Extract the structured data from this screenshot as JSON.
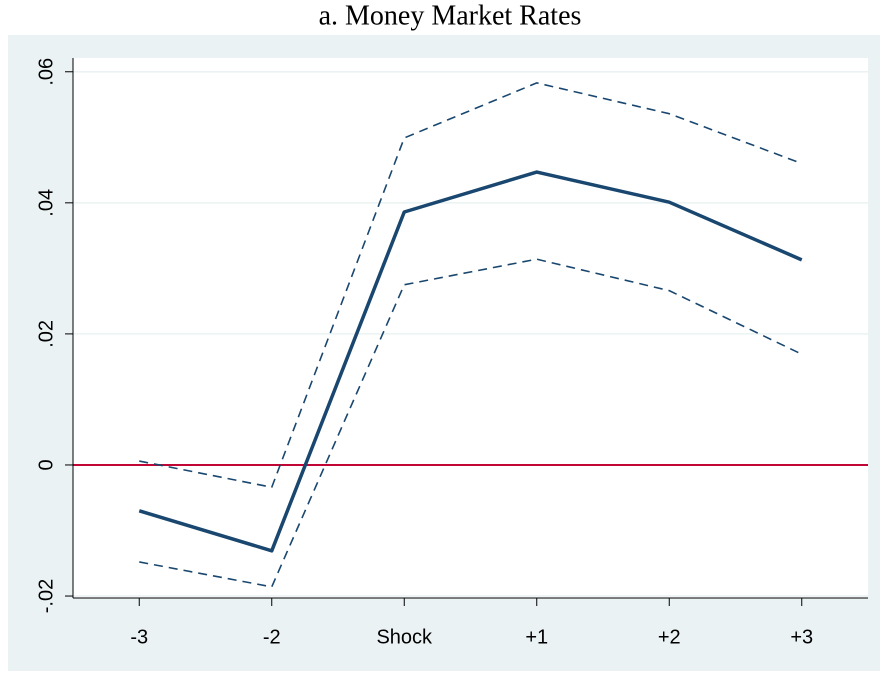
{
  "chart_data": {
    "type": "line",
    "title": "a. Money Market Rates",
    "categories": [
      "-3",
      "-2",
      "Shock",
      "+1",
      "+2",
      "+3"
    ],
    "series": [
      {
        "color": "#1a476f",
        "style": "dashed",
        "values": [
          0.0006,
          -0.0034,
          0.0499,
          0.0583,
          0.0536,
          0.046
        ]
      },
      {
        "color": "#1a476f",
        "style": "solid",
        "values": [
          -0.007,
          -0.0131,
          0.0386,
          0.0447,
          0.0401,
          0.0313
        ]
      },
      {
        "color": "#1a476f",
        "style": "dashed",
        "values": [
          -0.0148,
          -0.0186,
          0.0275,
          0.0314,
          0.0266,
          0.0169
        ]
      }
    ],
    "ylim": [
      -0.0203,
      0.0621
    ],
    "yticks": [
      {
        "value": -0.02,
        "label": "-.02"
      },
      0,
      {
        "value": 0.02,
        "label": ".02"
      },
      {
        "value": 0.04,
        "label": ".04"
      },
      {
        "value": 0.06,
        "label": ".06"
      }
    ],
    "grid": true,
    "hline": {
      "value": 0,
      "color": "#c10534"
    }
  }
}
